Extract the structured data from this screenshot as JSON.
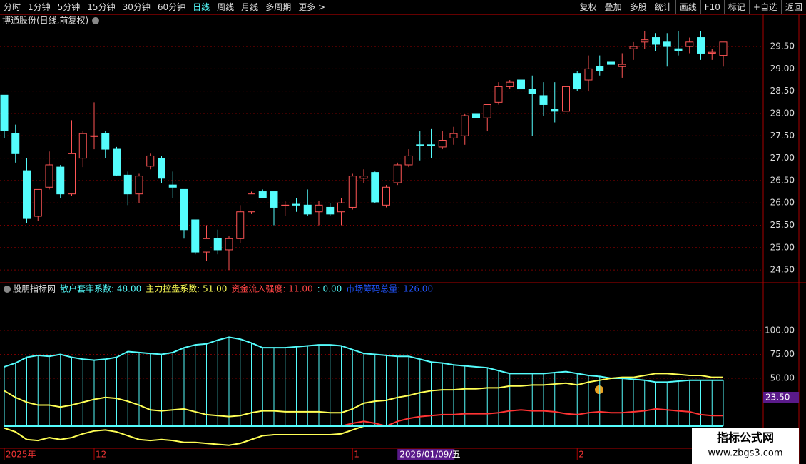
{
  "toolbar": {
    "left": [
      "分时",
      "1分钟",
      "5分钟",
      "15分钟",
      "30分钟",
      "60分钟",
      "日线",
      "周线",
      "月线",
      "多周期",
      "更多 >"
    ],
    "active": 6,
    "right": [
      "复权",
      "叠加",
      "多股",
      "统计",
      "画线",
      "F10",
      "标记",
      "+自选",
      "返回"
    ]
  },
  "chart_data": [
    {
      "type": "candlestick",
      "title": "博通股份(日线,前复权)",
      "up_color": "#ff5555",
      "down_color": "#54fcfc",
      "ylim": [
        24.23,
        30.22
      ],
      "yticks": [
        {
          "value": 24.5,
          "label": "24.50"
        },
        {
          "value": 25,
          "label": "25.00"
        },
        {
          "value": 25.5,
          "label": "25.50"
        },
        {
          "value": 26,
          "label": "26.00"
        },
        {
          "value": 26.5,
          "label": "26.50"
        },
        {
          "value": 27,
          "label": "27.00"
        },
        {
          "value": 27.5,
          "label": "27.50"
        },
        {
          "value": 28,
          "label": "28.00"
        },
        {
          "value": 28.5,
          "label": "28.50"
        },
        {
          "value": 29,
          "label": "29.00"
        },
        {
          "value": 29.5,
          "label": "29.50"
        }
      ],
      "ohlc": [
        [
          28.41,
          28.41,
          27.45,
          27.62
        ],
        [
          27.55,
          27.75,
          26.9,
          27.1
        ],
        [
          26.72,
          27.0,
          25.55,
          25.65
        ],
        [
          25.7,
          26.3,
          25.6,
          26.3
        ],
        [
          26.35,
          27.15,
          26.3,
          26.85
        ],
        [
          26.8,
          26.85,
          26.1,
          26.2
        ],
        [
          26.2,
          27.85,
          26.15,
          27.1
        ],
        [
          27.0,
          27.6,
          26.8,
          27.55
        ],
        [
          27.5,
          28.25,
          27.2,
          27.5
        ],
        [
          27.55,
          27.6,
          27.0,
          27.2
        ],
        [
          27.2,
          27.25,
          26.6,
          26.62
        ],
        [
          26.62,
          26.7,
          25.95,
          26.2
        ],
        [
          26.2,
          26.65,
          26.0,
          26.6
        ],
        [
          26.82,
          27.1,
          26.75,
          27.05
        ],
        [
          27.0,
          27.05,
          26.45,
          26.55
        ],
        [
          26.4,
          26.7,
          26.1,
          26.35
        ],
        [
          26.3,
          26.3,
          25.2,
          25.4
        ],
        [
          25.62,
          25.62,
          24.85,
          24.9
        ],
        [
          24.9,
          25.5,
          24.7,
          25.2
        ],
        [
          25.2,
          25.4,
          24.85,
          24.95
        ],
        [
          24.95,
          25.25,
          24.5,
          25.2
        ],
        [
          25.2,
          25.95,
          25.1,
          25.8
        ],
        [
          25.8,
          26.25,
          25.75,
          26.2
        ],
        [
          26.25,
          26.3,
          26.1,
          26.12
        ],
        [
          26.25,
          26.25,
          25.5,
          25.9
        ],
        [
          25.95,
          26.05,
          25.7,
          25.95
        ],
        [
          25.97,
          26.1,
          25.8,
          25.95
        ],
        [
          25.95,
          26.3,
          25.7,
          25.75
        ],
        [
          25.8,
          26.05,
          25.5,
          25.95
        ],
        [
          25.9,
          26.0,
          25.7,
          25.75
        ],
        [
          25.8,
          26.1,
          25.5,
          26.0
        ],
        [
          25.9,
          26.65,
          25.85,
          26.6
        ],
        [
          26.55,
          26.75,
          26.45,
          26.6
        ],
        [
          26.68,
          26.7,
          26.0,
          26.02
        ],
        [
          25.95,
          26.4,
          25.9,
          26.35
        ],
        [
          26.45,
          26.9,
          26.4,
          26.85
        ],
        [
          26.85,
          27.2,
          26.8,
          27.05
        ],
        [
          27.3,
          27.6,
          26.95,
          27.29
        ],
        [
          27.3,
          27.65,
          27.0,
          27.29
        ],
        [
          27.25,
          27.6,
          27.2,
          27.4
        ],
        [
          27.45,
          27.7,
          27.3,
          27.55
        ],
        [
          27.5,
          28.0,
          27.3,
          27.95
        ],
        [
          28.0,
          28.05,
          27.9,
          27.9
        ],
        [
          27.9,
          28.2,
          27.6,
          28.2
        ],
        [
          28.25,
          28.7,
          28.2,
          28.6
        ],
        [
          28.6,
          28.75,
          28.55,
          28.7
        ],
        [
          28.75,
          28.95,
          28.05,
          28.55
        ],
        [
          28.55,
          28.85,
          27.5,
          28.45
        ],
        [
          28.4,
          28.7,
          27.95,
          28.2
        ],
        [
          28.1,
          28.7,
          27.8,
          28.05
        ],
        [
          28.05,
          28.75,
          27.75,
          28.6
        ],
        [
          28.9,
          28.95,
          28.5,
          28.55
        ],
        [
          28.75,
          29.3,
          28.5,
          29.0
        ],
        [
          29.05,
          29.3,
          28.85,
          28.95
        ],
        [
          29.15,
          29.4,
          29.0,
          29.1
        ],
        [
          29.05,
          29.35,
          28.8,
          29.1
        ],
        [
          29.45,
          29.6,
          29.2,
          29.5
        ],
        [
          29.6,
          29.85,
          29.45,
          29.65
        ],
        [
          29.7,
          29.8,
          29.4,
          29.55
        ],
        [
          29.6,
          29.8,
          29.05,
          29.5
        ],
        [
          29.45,
          29.85,
          29.3,
          29.4
        ],
        [
          29.5,
          29.7,
          29.35,
          29.6
        ],
        [
          29.7,
          29.85,
          29.2,
          29.35
        ],
        [
          29.35,
          29.45,
          29.2,
          29.37
        ],
        [
          29.3,
          29.6,
          29.05,
          29.6
        ]
      ]
    },
    {
      "type": "line",
      "title": "股朋指标网",
      "legend": [
        {
          "text": "散户套牢系数: 48.00",
          "color": "#54fcfc"
        },
        {
          "text": "主力控盘系数: 51.00",
          "color": "#ffff55"
        },
        {
          "text": "资金流入强度: 11.00",
          "color": "#ff4444"
        },
        {
          "text": ": 0.00",
          "color": "#54fcfc"
        },
        {
          "text": "市场筹码总量: 126.00",
          "color": "#2255ff"
        }
      ],
      "ylim": [
        -20.9,
        149.3
      ],
      "yticks": [
        {
          "value": 50,
          "label": "50.00"
        },
        {
          "value": 75,
          "label": "75.00"
        },
        {
          "value": 100,
          "label": "100.00"
        }
      ],
      "series": [
        {
          "color": "#54fcfc",
          "bars": true,
          "values": [
            62,
            66,
            72,
            74,
            73,
            75,
            72,
            70,
            69,
            70,
            72,
            78,
            77,
            76,
            75,
            77,
            82,
            85,
            86,
            90,
            93,
            91,
            87,
            82,
            82,
            82,
            83,
            84,
            85,
            85,
            84,
            80,
            76,
            75,
            74,
            73,
            73,
            70,
            67,
            66,
            64,
            63,
            62,
            61,
            58,
            55,
            55,
            55,
            55,
            56,
            57,
            55,
            53,
            52,
            50,
            50,
            49,
            48,
            46,
            46,
            47,
            48,
            48,
            48,
            48
          ]
        },
        {
          "color": "#ffff55",
          "values": [
            37,
            30,
            25,
            22,
            22,
            20,
            22,
            25,
            28,
            30,
            29,
            26,
            22,
            17,
            16,
            17,
            18,
            15,
            12,
            11,
            10,
            11,
            14,
            16,
            16,
            15,
            15,
            15,
            15,
            14,
            14,
            18,
            24,
            26,
            27,
            30,
            32,
            35,
            37,
            38,
            38,
            39,
            39,
            40,
            40,
            42,
            42,
            43,
            43,
            44,
            45,
            43,
            46,
            48,
            50,
            51,
            51,
            53,
            55,
            55,
            54,
            53,
            53,
            51,
            51
          ]
        },
        {
          "color": "#ff3333",
          "values": [
            0,
            0,
            0,
            0,
            0,
            0,
            0,
            0,
            0,
            0,
            0,
            0,
            0,
            0,
            0,
            0,
            0,
            0,
            0,
            0,
            0,
            0,
            0,
            0,
            0,
            0,
            0,
            0,
            0,
            0,
            0,
            3,
            5,
            3,
            0,
            5,
            8,
            10,
            11,
            12,
            12,
            13,
            13,
            13,
            14,
            16,
            17,
            16,
            16,
            15,
            13,
            12,
            14,
            15,
            14,
            14,
            15,
            16,
            18,
            17,
            16,
            15,
            12,
            11,
            11
          ]
        },
        {
          "color": "#ffff55",
          "values": [
            -2,
            -6,
            -14,
            -15,
            -12,
            -14,
            -12,
            -8,
            -5,
            -4,
            -6,
            -10,
            -14,
            -15,
            -14,
            -15,
            -17,
            -17,
            -18,
            -19,
            -20,
            -18,
            -14,
            -10,
            -9,
            -9,
            -9,
            -9,
            -9,
            -9,
            -8,
            -4,
            0,
            null,
            null,
            null,
            null,
            null,
            null,
            null,
            null,
            null,
            null,
            null,
            null,
            null,
            null,
            null,
            null,
            null,
            null,
            null,
            null,
            null,
            null,
            null,
            null,
            null,
            null,
            null,
            null,
            null,
            null,
            null,
            null
          ]
        }
      ],
      "cursor_label": "23.50"
    }
  ],
  "date_axis": [
    {
      "label": "2025年",
      "index": 0
    },
    {
      "label": "12",
      "index": 8
    },
    {
      "label": "1",
      "index": 31
    },
    {
      "label": "2",
      "index": 51
    }
  ],
  "date_cursor": {
    "label": "2026/01/09/五",
    "index": 35
  },
  "watermark": {
    "title": "指标公式网",
    "url": "www.zbgs3.com"
  }
}
